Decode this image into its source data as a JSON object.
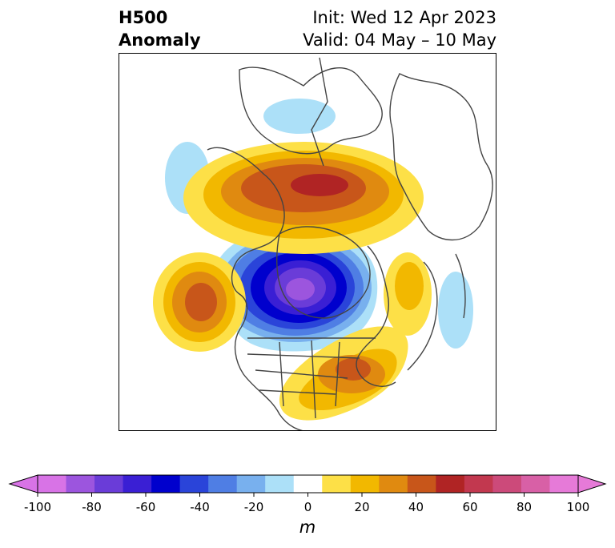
{
  "header": {
    "title_line1": "H500",
    "title_line2": "Anomaly",
    "init_text": "Init: Wed 12 Apr 2023",
    "valid_text": "Valid: 04 May – 10 May"
  },
  "colorbar": {
    "unit": "m",
    "min": -100,
    "max": 100,
    "bounds": [
      -100,
      -90,
      -80,
      -70,
      -60,
      -50,
      -40,
      -30,
      -20,
      -10,
      10,
      20,
      30,
      40,
      50,
      60,
      70,
      80,
      90,
      100
    ],
    "colors": [
      "#d873e6",
      "#9c55de",
      "#6a3cd8",
      "#3a1fd4",
      "#0000cd",
      "#2a44d9",
      "#4f7ee4",
      "#78b0ee",
      "#ace0f8",
      "#ffffff",
      "#fde047",
      "#f2b800",
      "#e08a10",
      "#c8561a",
      "#b02424",
      "#c2384f",
      "#cc4a7a",
      "#d860a6",
      "#e67ad8"
    ],
    "under_color": "#d873e6",
    "over_color": "#e67ad8",
    "ticks": [
      "-100",
      "-80",
      "-60",
      "-40",
      "-20",
      "0",
      "20",
      "40",
      "60",
      "80",
      "100"
    ]
  },
  "map_features": {
    "projection": "north polar stereographic",
    "anomaly_centers": [
      {
        "region": "Northern Canada / Canadian Archipelago",
        "sign": "positive",
        "peak": 60
      },
      {
        "region": "Hudson Bay",
        "sign": "negative",
        "peak": -90
      },
      {
        "region": "Northeastern Pacific",
        "sign": "positive",
        "peak": 40
      },
      {
        "region": "Eastern United States",
        "sign": "positive",
        "peak": 40
      },
      {
        "region": "Western Atlantic",
        "sign": "positive",
        "peak": 20
      },
      {
        "region": "Alaska",
        "sign": "negative",
        "peak": -20
      },
      {
        "region": "Arctic Ocean",
        "sign": "negative",
        "peak": -20
      },
      {
        "region": "North Atlantic",
        "sign": "negative",
        "peak": -20
      }
    ]
  }
}
